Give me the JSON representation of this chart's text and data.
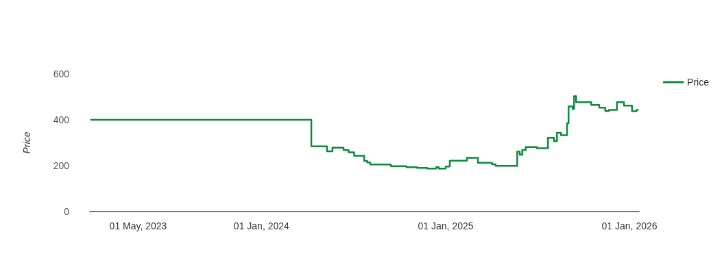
{
  "chart_data": {
    "type": "step",
    "ylabel": "Price",
    "series": [
      {
        "name": "Price",
        "color": "#0a8a3c",
        "x": [
          "2023-01-26",
          "2024-04-09",
          "2024-05-10",
          "2024-05-21",
          "2024-06-12",
          "2024-06-22",
          "2024-07-03",
          "2024-07-23",
          "2024-07-29",
          "2024-08-04",
          "2024-09-14",
          "2024-10-15",
          "2024-11-05",
          "2024-11-25",
          "2024-12-13",
          "2024-12-18",
          "2025-01-01",
          "2025-01-09",
          "2025-02-12",
          "2025-03-06",
          "2025-04-03",
          "2025-04-10",
          "2025-05-23",
          "2025-05-28",
          "2025-06-02",
          "2025-06-09",
          "2025-07-01",
          "2025-07-23",
          "2025-08-04",
          "2025-08-10",
          "2025-08-18",
          "2025-08-30",
          "2025-09-02",
          "2025-09-10",
          "2025-09-13",
          "2025-09-17",
          "2025-10-17",
          "2025-11-02",
          "2025-11-14",
          "2025-11-21",
          "2025-12-07",
          "2025-12-21",
          "2026-01-06",
          "2026-01-15",
          "2026-01-19"
        ],
        "values": [
          400,
          284,
          263,
          278,
          268,
          258,
          243,
          221,
          214,
          205,
          198,
          193,
          190,
          187,
          194,
          187,
          196,
          222,
          234,
          213,
          206,
          199,
          261,
          248,
          268,
          281,
          276,
          322,
          307,
          343,
          333,
          385,
          458,
          447,
          503,
          477,
          465,
          453,
          438,
          443,
          477,
          462,
          437,
          443,
          443
        ]
      }
    ],
    "xlim": [
      "2023-01-25",
      "2026-01-20"
    ],
    "xticks": [
      {
        "value": "2023-05-01",
        "label": "01 May, 2023"
      },
      {
        "value": "2024-01-01",
        "label": "01 Jan, 2024"
      },
      {
        "value": "2025-01-01",
        "label": "01 Jan, 2025"
      },
      {
        "value": "2026-01-01",
        "label": "01 Jan, 2026"
      }
    ],
    "ylim": [
      0,
      600
    ],
    "yticks": [
      0,
      200,
      400,
      600
    ],
    "legend": "top right",
    "marker": "none",
    "line_style": "solid"
  }
}
